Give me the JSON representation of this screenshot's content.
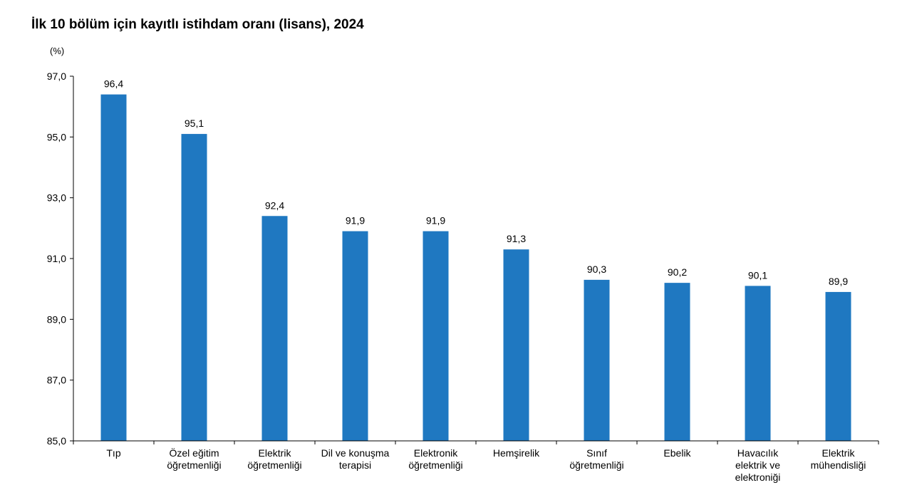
{
  "chart_data": {
    "type": "bar",
    "title": "İlk 10 bölüm için kayıtlı istihdam oranı (lisans), 2024",
    "unit": "(%)",
    "xlabel": "",
    "ylabel": "",
    "ylim": [
      85,
      97
    ],
    "yticks": [
      85,
      87,
      89,
      91,
      93,
      95,
      97
    ],
    "ytick_labels": [
      "85,0",
      "87,0",
      "89,0",
      "91,0",
      "93,0",
      "95,0",
      "97,0"
    ],
    "grid": false,
    "legend": "none",
    "bar_color": "#1F78C1",
    "categories": [
      [
        "Tıp"
      ],
      [
        "Özel eğitim",
        "öğretmenliği"
      ],
      [
        "Elektrik",
        "öğretmenliği"
      ],
      [
        "Dil ve konuşma",
        "terapisi"
      ],
      [
        "Elektronik",
        "öğretmenliği"
      ],
      [
        "Hemşirelik"
      ],
      [
        "Sınıf",
        "öğretmenliği"
      ],
      [
        "Ebelik"
      ],
      [
        "Havacılık",
        "elektrik ve",
        "elektroniği"
      ],
      [
        "Elektrik",
        "mühendisliği"
      ]
    ],
    "values": [
      96.4,
      95.1,
      92.4,
      91.9,
      91.9,
      91.3,
      90.3,
      90.2,
      90.1,
      89.9
    ],
    "value_labels": [
      "96,4",
      "95,1",
      "92,4",
      "91,9",
      "91,9",
      "91,3",
      "90,3",
      "90,2",
      "90,1",
      "89,9"
    ]
  }
}
